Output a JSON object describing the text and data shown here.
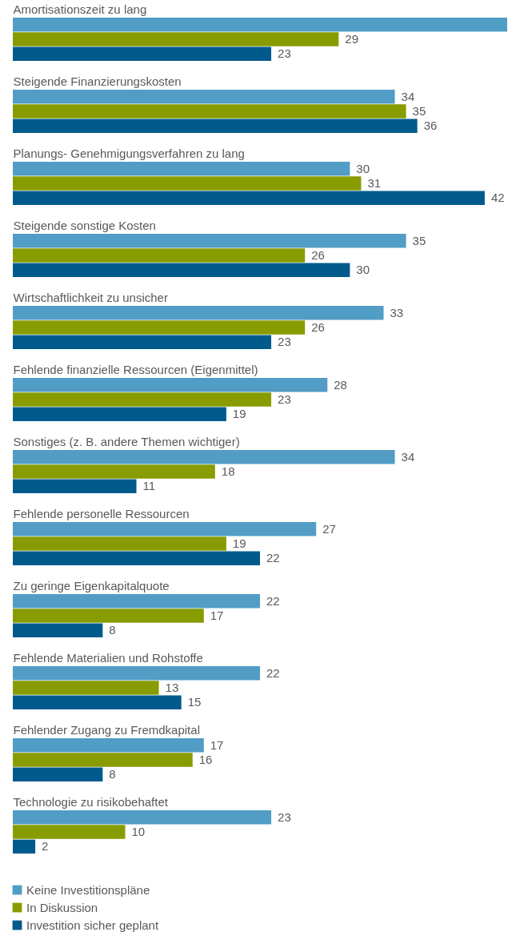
{
  "chart_data": {
    "type": "bar",
    "orientation": "horizontal",
    "legend": "bottom",
    "categories": [
      "Amortisationszeit zu lang",
      "Steigende Finanzierungskosten",
      "Planungs- Genehmigungsverfahren zu lang",
      "Steigende sonstige Kosten",
      "Wirtschaftlichkeit zu unsicher",
      "Fehlende finanzielle Ressourcen (Eigenmittel)",
      "Sonstiges (z. B. andere Themen wichtiger)",
      "Fehlende personelle Ressourcen",
      "Zu geringe Eigenkapitalquote",
      "Fehlende Materialien und Rohstoffe",
      "Fehlender Zugang zu Fremdkapital",
      "Technologie zu risikobehaftet"
    ],
    "series": [
      {
        "name": "Keine Investitionspläne",
        "color": "#519dc5",
        "values": [
          44,
          34,
          30,
          35,
          33,
          28,
          34,
          27,
          22,
          22,
          17,
          23
        ],
        "value_labels": [
          null,
          "34",
          "30",
          "35",
          "33",
          "28",
          "34",
          "27",
          "22",
          "22",
          "17",
          "23"
        ]
      },
      {
        "name": "In Diskussion",
        "color": "#889c00",
        "values": [
          29,
          35,
          31,
          26,
          26,
          23,
          18,
          19,
          17,
          13,
          16,
          10
        ],
        "value_labels": [
          "29",
          "35",
          "31",
          "26",
          "26",
          "23",
          "18",
          "19",
          "17",
          "13",
          "16",
          "10"
        ]
      },
      {
        "name": "Investition sicher geplant",
        "color": "#005a8c",
        "values": [
          23,
          36,
          42,
          30,
          23,
          19,
          11,
          22,
          8,
          15,
          8,
          2
        ],
        "value_labels": [
          "23",
          "36",
          "42",
          "30",
          "23",
          "19",
          "11",
          "22",
          "8",
          "15",
          "8",
          "2"
        ]
      }
    ]
  }
}
